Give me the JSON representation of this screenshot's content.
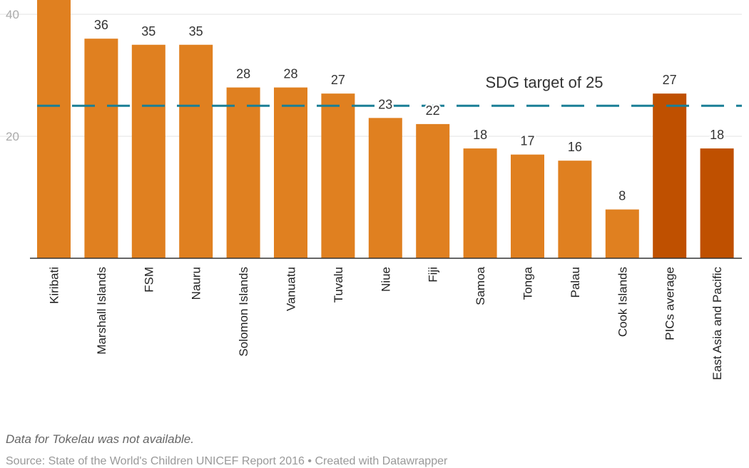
{
  "chart_data": {
    "type": "bar",
    "categories": [
      "Kiribati",
      "Marshall Islands",
      "FSM",
      "Nauru",
      "Solomon Islands",
      "Vanuatu",
      "Tuvalu",
      "Niue",
      "Fiji",
      "Samoa",
      "Tonga",
      "Palau",
      "Cook Islands",
      "PICs average",
      "East Asia and Pacific"
    ],
    "values": [
      43,
      36,
      35,
      35,
      28,
      28,
      27,
      23,
      22,
      18,
      17,
      16,
      8,
      27,
      18
    ],
    "value_labels": [
      null,
      "36",
      "35",
      "35",
      "28",
      "28",
      "27",
      "23",
      "22",
      "18",
      "17",
      "16",
      "8",
      "27",
      "18"
    ],
    "highlighted_categories": [
      "PICs average",
      "East Asia and Pacific"
    ],
    "y_tick_labels": [
      "20",
      "40"
    ],
    "y_ticks": [
      20,
      40
    ],
    "ylim": [
      0,
      43
    ],
    "reference_line": {
      "value": 25,
      "label": "SDG target of 25",
      "style": "dashed"
    },
    "grid": true,
    "colors": {
      "bar": "#e08020",
      "highlight": "#bf5000",
      "target_line": "#1a7f96",
      "axis": "#333333",
      "grid": "#e3e3e3",
      "tick": "#aaaaaa",
      "value_label": "#333333"
    }
  },
  "footer": {
    "note": "Data for Tokelau was not available.",
    "source": "Source: State of the World's Children UNICEF Report 2016 • Created with Datawrapper"
  }
}
